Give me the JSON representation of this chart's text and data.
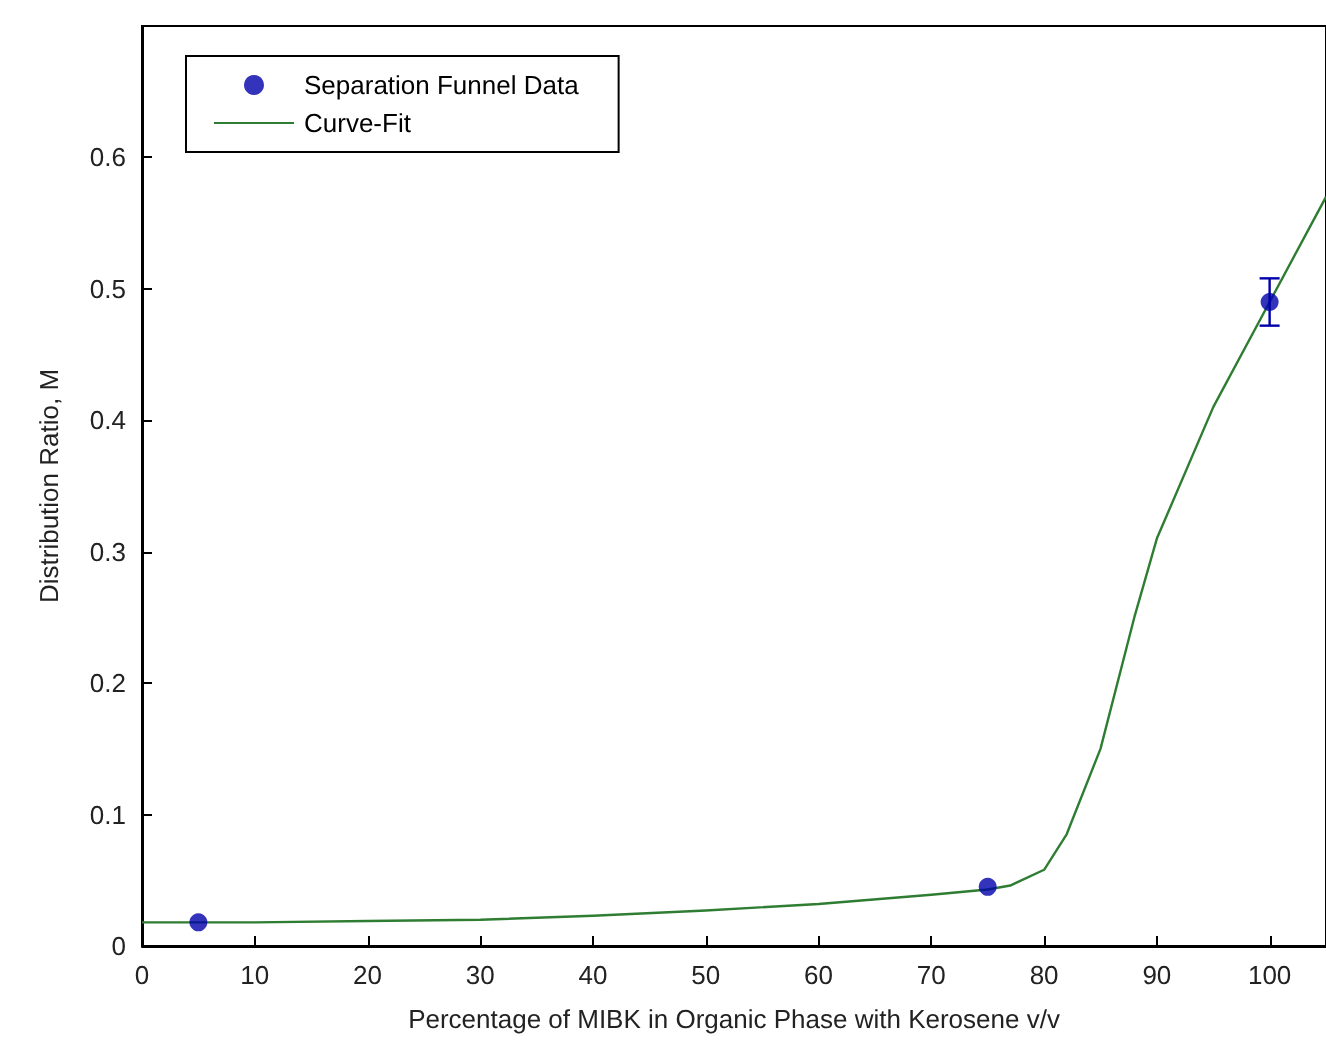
{
  "chart_data": {
    "type": "scatter",
    "xlabel": "Percentage of MIBK in Organic Phase with Kerosene v/v",
    "ylabel": "Distribution Ratio, M",
    "xlim": [
      0,
      105
    ],
    "xticks": [
      0,
      10,
      20,
      30,
      40,
      50,
      60,
      70,
      80,
      90,
      100
    ],
    "ylim": [
      0,
      0.7
    ],
    "yticks": [
      0,
      0.1,
      0.2,
      0.3,
      0.4,
      0.5,
      0.6
    ],
    "grid": false,
    "legend": "top left",
    "series": [
      {
        "name": "Separation Funnel Data",
        "marker": "circle",
        "color": "#0000aa",
        "x": [
          5,
          75,
          100
        ],
        "values": [
          0.018,
          0.045,
          0.49
        ],
        "errors": [
          null,
          null,
          0.018
        ]
      },
      {
        "name": "Curve-Fit",
        "type": "line",
        "marker": "none",
        "color": "#2e7d32",
        "line_style": "solid",
        "x": [
          0,
          10,
          20,
          30,
          40,
          50,
          60,
          70,
          75,
          77,
          80,
          82,
          85,
          88,
          90,
          95,
          100,
          105
        ],
        "values": [
          0.018,
          0.018,
          0.019,
          0.02,
          0.023,
          0.027,
          0.032,
          0.039,
          0.043,
          0.046,
          0.058,
          0.085,
          0.15,
          0.25,
          0.31,
          0.41,
          0.49,
          0.57
        ]
      }
    ]
  }
}
